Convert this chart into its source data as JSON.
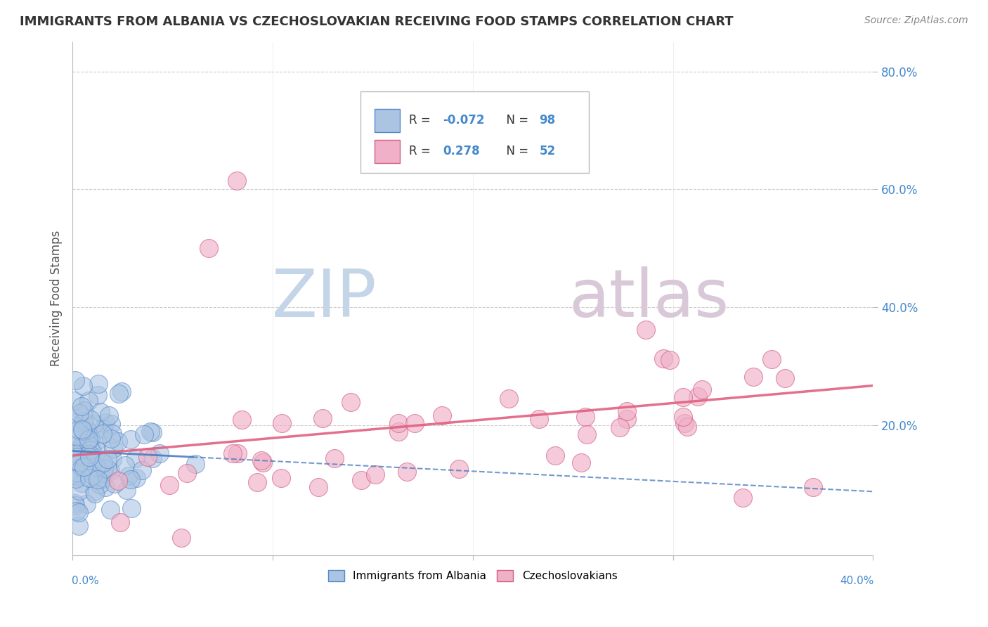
{
  "title": "IMMIGRANTS FROM ALBANIA VS CZECHOSLOVAKIAN RECEIVING FOOD STAMPS CORRELATION CHART",
  "source": "Source: ZipAtlas.com",
  "ylabel": "Receiving Food Stamps",
  "xlim": [
    0.0,
    0.4
  ],
  "ylim": [
    -0.02,
    0.85
  ],
  "ytick_positions": [
    0.2,
    0.4,
    0.6,
    0.8
  ],
  "ytick_labels": [
    "20.0%",
    "40.0%",
    "60.0%",
    "80.0%"
  ],
  "legend_r_albania": "-0.072",
  "legend_n_albania": "98",
  "legend_r_czech": "0.278",
  "legend_n_czech": "52",
  "albania_color": "#aac4e2",
  "albania_edge_color": "#5588cc",
  "czech_color": "#f0b0c8",
  "czech_edge_color": "#d06080",
  "albania_line_color": "#4477bb",
  "albania_line2_color": "#4477bb",
  "czech_line_color": "#e06080",
  "watermark_zip_color": "#c5d5e8",
  "watermark_atlas_color": "#d8c8d8",
  "background_color": "#ffffff",
  "grid_color": "#cccccc",
  "title_color": "#333333",
  "axis_label_color": "#555555",
  "tick_label_color": "#4488cc",
  "source_color": "#888888"
}
